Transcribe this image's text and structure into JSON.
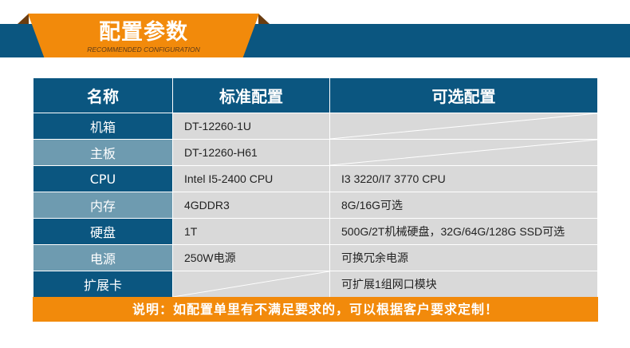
{
  "header": {
    "title": "配置参数",
    "subtitle": "RECOMMENDED CONFIGURATION"
  },
  "table": {
    "columns": [
      "名称",
      "标准配置",
      "可选配置"
    ],
    "rows": [
      {
        "name": "机箱",
        "standard": "DT-12260-1U",
        "optional": ""
      },
      {
        "name": "主板",
        "standard": "DT-12260-H61",
        "optional": ""
      },
      {
        "name": "CPU",
        "standard": "Intel I5-2400 CPU",
        "optional": "I3 3220/I7 3770 CPU"
      },
      {
        "name": "内存",
        "standard": "4GDDR3",
        "optional": "8G/16G可选"
      },
      {
        "name": "硬盘",
        "standard": "1T",
        "optional": "500G/2T机械硬盘，32G/64G/128G SSD可选"
      },
      {
        "name": "电源",
        "standard": "250W电源",
        "optional": "可换冗余电源"
      },
      {
        "name": "扩展卡",
        "standard": "",
        "optional": "可扩展1组网口模块"
      }
    ]
  },
  "footer": {
    "note": "说明：如配置单里有不满足要求的，可以根据客户要求定制！"
  },
  "colors": {
    "blue": "#0b5680",
    "light_blue": "#6e9bb0",
    "orange": "#f28a0b",
    "cell": "#d9d9d9"
  }
}
